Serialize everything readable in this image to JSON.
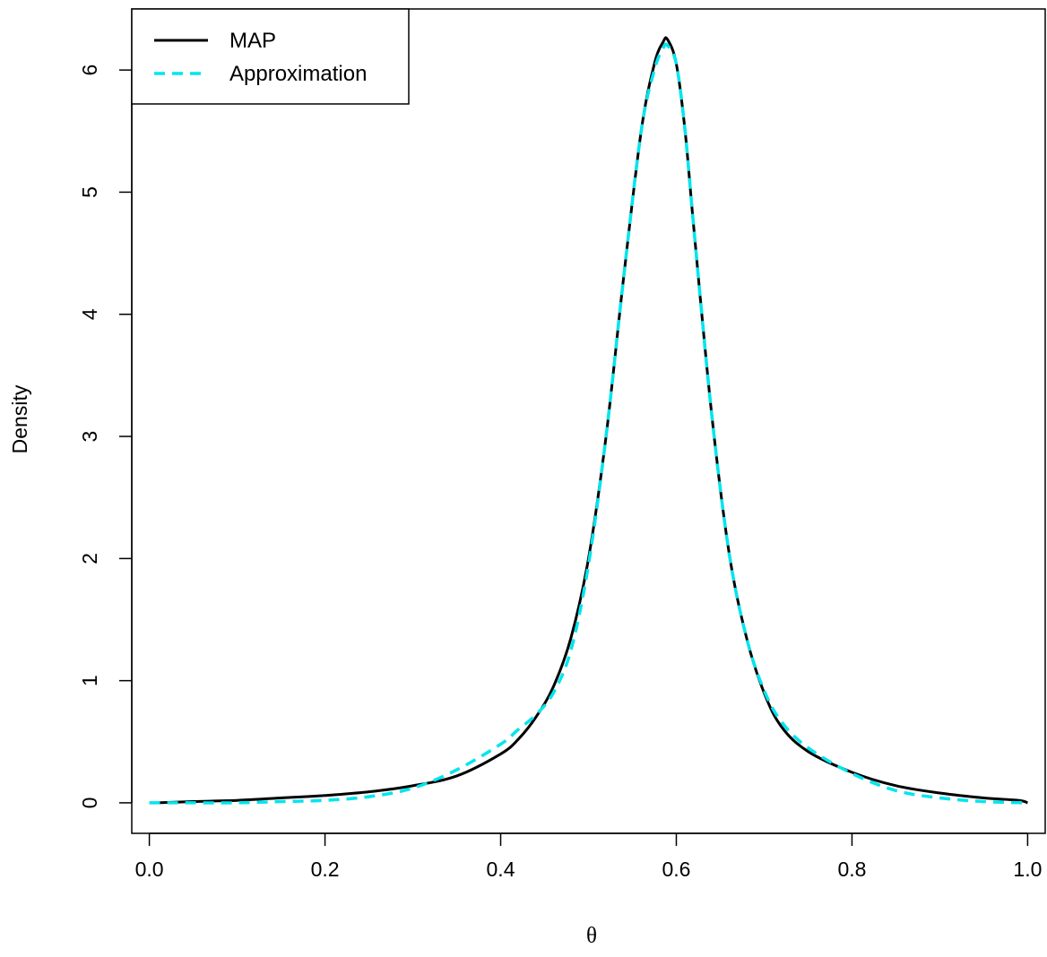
{
  "chart_data": {
    "type": "line",
    "title": "",
    "xlabel": "θ",
    "ylabel": "Density",
    "xlim": [
      -0.02,
      1.02
    ],
    "ylim": [
      -0.25,
      6.5
    ],
    "x_ticks": [
      "0.0",
      "0.2",
      "0.4",
      "0.6",
      "0.8",
      "1.0"
    ],
    "x_tick_values": [
      0,
      0.2,
      0.4,
      0.6,
      0.8,
      1.0
    ],
    "y_ticks": [
      "0",
      "1",
      "2",
      "3",
      "4",
      "5",
      "6"
    ],
    "y_tick_values": [
      0,
      1,
      2,
      3,
      4,
      5,
      6
    ],
    "grid": false,
    "legend": {
      "position": "top-left"
    },
    "series": [
      {
        "name": "MAP",
        "color": "#000000",
        "style": "solid",
        "x": [
          0.01,
          0.05,
          0.1,
          0.15,
          0.2,
          0.25,
          0.3,
          0.35,
          0.4,
          0.42,
          0.44,
          0.46,
          0.48,
          0.5,
          0.52,
          0.54,
          0.56,
          0.575,
          0.585,
          0.59,
          0.6,
          0.61,
          0.62,
          0.64,
          0.66,
          0.68,
          0.7,
          0.72,
          0.75,
          0.8,
          0.85,
          0.9,
          0.95,
          0.99,
          1.0
        ],
        "y": [
          0.0,
          0.01,
          0.02,
          0.04,
          0.06,
          0.09,
          0.14,
          0.22,
          0.4,
          0.52,
          0.7,
          0.95,
          1.35,
          2.0,
          3.0,
          4.3,
          5.5,
          6.05,
          6.23,
          6.25,
          6.05,
          5.5,
          4.7,
          3.2,
          2.05,
          1.35,
          0.9,
          0.62,
          0.42,
          0.25,
          0.14,
          0.08,
          0.04,
          0.02,
          0.0
        ]
      },
      {
        "name": "Approximation",
        "color": "#00e5ee",
        "style": "dashed",
        "x": [
          0.0,
          0.05,
          0.1,
          0.15,
          0.2,
          0.25,
          0.3,
          0.35,
          0.4,
          0.42,
          0.44,
          0.46,
          0.48,
          0.5,
          0.52,
          0.54,
          0.56,
          0.575,
          0.585,
          0.59,
          0.6,
          0.61,
          0.62,
          0.64,
          0.66,
          0.68,
          0.7,
          0.72,
          0.75,
          0.8,
          0.85,
          0.9,
          0.95,
          1.0
        ],
        "y": [
          0.0,
          0.0,
          0.0,
          0.01,
          0.02,
          0.05,
          0.12,
          0.27,
          0.48,
          0.6,
          0.72,
          0.9,
          1.25,
          1.95,
          3.0,
          4.3,
          5.5,
          6.0,
          6.18,
          6.2,
          6.05,
          5.5,
          4.7,
          3.2,
          2.05,
          1.35,
          0.92,
          0.66,
          0.45,
          0.24,
          0.1,
          0.04,
          0.01,
          0.0
        ]
      }
    ]
  }
}
